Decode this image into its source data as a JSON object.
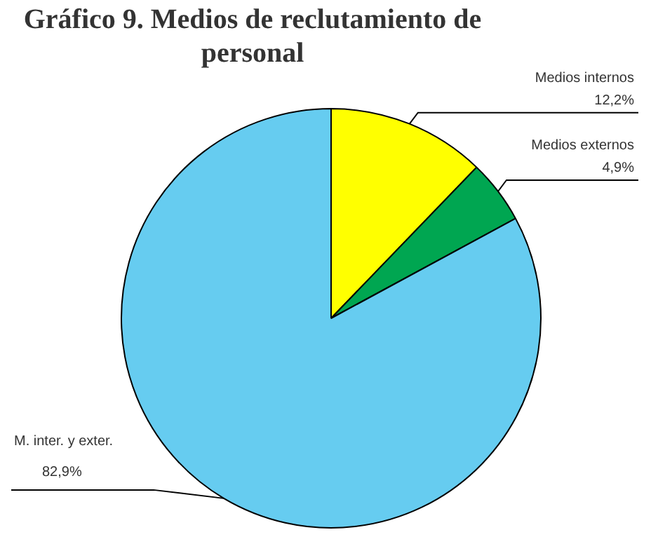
{
  "chart_data": {
    "type": "pie",
    "title": "Gráfico 9. Medios de reclutamiento de personal",
    "categories": [
      "Medios internos",
      "Medios externos",
      "M. inter. y exter."
    ],
    "values": [
      12.2,
      4.9,
      82.9
    ],
    "value_labels": [
      "12,2%",
      "4,9%",
      "82,9%"
    ],
    "colors": [
      "#ffff00",
      "#00a651",
      "#66ccf0"
    ],
    "legend": false
  }
}
